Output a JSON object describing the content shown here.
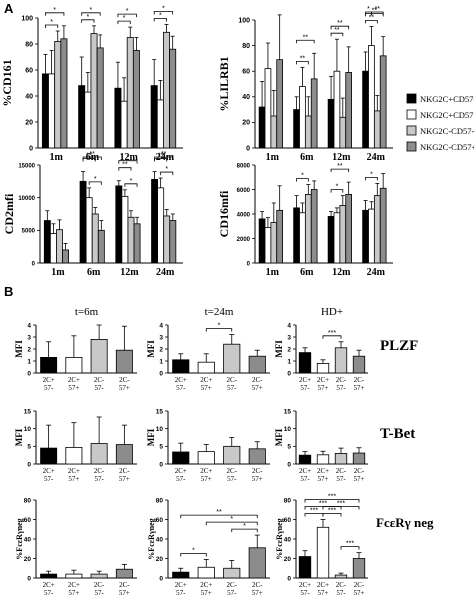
{
  "panel_labels": [
    "A",
    "B"
  ],
  "chart_data": [
    {
      "id": "cd161",
      "type": "bar",
      "ylabel": "%CD161",
      "categories": [
        "1m",
        "6m",
        "12m",
        "24m"
      ],
      "ylim": [
        0,
        100
      ],
      "yticks": [
        0,
        20,
        40,
        60,
        80,
        100
      ],
      "series": [
        {
          "name": "NKG2C+CD57-",
          "values": [
            57,
            48,
            46,
            48
          ],
          "err": [
            15,
            22,
            20,
            20
          ]
        },
        {
          "name": "NKG2C+CD57+",
          "values": [
            57,
            43,
            36,
            37
          ],
          "err": [
            18,
            15,
            18,
            15
          ]
        },
        {
          "name": "NKG2C-CD57-",
          "values": [
            82,
            88,
            85,
            89
          ],
          "err": [
            8,
            6,
            8,
            6
          ]
        },
        {
          "name": "NKG2C-CD57+",
          "values": [
            84,
            77,
            75,
            76
          ],
          "err": [
            10,
            10,
            10,
            10
          ]
        }
      ],
      "signif": [
        "*",
        "*",
        "*",
        "*",
        "*",
        "*",
        "*",
        "*"
      ]
    },
    {
      "id": "lilrb1",
      "type": "bar",
      "ylabel": "%LILRB1",
      "categories": [
        "1m",
        "6m",
        "12m",
        "24m"
      ],
      "ylim": [
        0,
        100
      ],
      "yticks": [
        0,
        20,
        40,
        60,
        80,
        100
      ],
      "series": [
        {
          "name": "NKG2C+CD57-",
          "values": [
            32,
            30,
            38,
            60
          ],
          "err": [
            20,
            10,
            18,
            15
          ]
        },
        {
          "name": "NKG2C+CD57+",
          "values": [
            62,
            48,
            60,
            80
          ],
          "err": [
            20,
            15,
            25,
            15
          ]
        },
        {
          "name": "NKG2C-CD57-",
          "values": [
            25,
            25,
            24,
            29
          ],
          "err": [
            20,
            15,
            15,
            12
          ]
        },
        {
          "name": "NKG2C-CD57+",
          "values": [
            69,
            54,
            59,
            72
          ],
          "err": [
            35,
            20,
            20,
            15
          ]
        }
      ],
      "signif": [
        "**",
        "**",
        "**",
        "**",
        "**",
        "**",
        "**",
        "*"
      ]
    },
    {
      "id": "cd2mfi",
      "type": "bar",
      "ylabel": "CD2mfi",
      "categories": [
        "1m",
        "6m",
        "12m",
        "24m"
      ],
      "ylim": [
        0,
        15000
      ],
      "yticks": [
        0,
        5000,
        10000,
        15000
      ],
      "series": [
        {
          "name": "NKG2C+CD57-",
          "values": [
            6500,
            12500,
            11800,
            12800
          ],
          "err": [
            1500,
            1500,
            800,
            1200
          ]
        },
        {
          "name": "NKG2C+CD57+",
          "values": [
            4500,
            10000,
            10200,
            11500
          ],
          "err": [
            1500,
            1500,
            1000,
            1500
          ]
        },
        {
          "name": "NKG2C-CD57-",
          "values": [
            5100,
            7500,
            7000,
            7200
          ],
          "err": [
            1500,
            1000,
            1000,
            1000
          ]
        },
        {
          "name": "NKG2C-CD57+",
          "values": [
            2000,
            5000,
            6000,
            6500
          ],
          "err": [
            1000,
            1500,
            1000,
            1000
          ]
        }
      ],
      "signif": [
        "**",
        "**",
        "*",
        "**",
        "*",
        "*",
        "**",
        "**",
        "*"
      ]
    },
    {
      "id": "cd16mfi",
      "type": "bar",
      "ylabel": "CD16mfi",
      "categories": [
        "1m",
        "6m",
        "12m",
        "24m"
      ],
      "ylim": [
        0,
        8000
      ],
      "yticks": [
        0,
        2000,
        4000,
        6000,
        8000
      ],
      "series": [
        {
          "name": "NKG2C+CD57-",
          "values": [
            3600,
            4500,
            3800,
            4300
          ],
          "err": [
            600,
            1000,
            400,
            800
          ]
        },
        {
          "name": "NKG2C+CD57+",
          "values": [
            2900,
            4100,
            4100,
            4400
          ],
          "err": [
            800,
            800,
            400,
            600
          ]
        },
        {
          "name": "NKG2C-CD57-",
          "values": [
            3300,
            5600,
            4700,
            5500
          ],
          "err": [
            1600,
            800,
            800,
            1000
          ]
        },
        {
          "name": "NKG2C-CD57+",
          "values": [
            4300,
            6000,
            5600,
            6100
          ],
          "err": [
            2000,
            700,
            1000,
            1200
          ]
        }
      ],
      "signif": [
        "*",
        "**",
        "*",
        "*"
      ]
    },
    {
      "id": "plzf_6m",
      "type": "bar",
      "title": "t=6m",
      "ylabel": "MFI",
      "categories": [
        "2C+ 57-",
        "2C+ 57+",
        "2C- 57-",
        "2C- 57+"
      ],
      "ylim": [
        0,
        4
      ],
      "yticks": [
        0,
        1,
        2,
        3,
        4
      ],
      "values": [
        1.3,
        1.3,
        2.8,
        1.9
      ],
      "err": [
        1.3,
        1.8,
        1.5,
        2.0
      ],
      "signif": []
    },
    {
      "id": "plzf_24m",
      "type": "bar",
      "title": "t=24m",
      "ylabel": "MFI",
      "categories": [
        "2C+ 57-",
        "2C+ 57+",
        "2C- 57-",
        "2C- 57+"
      ],
      "ylim": [
        0,
        4
      ],
      "yticks": [
        0,
        1,
        2,
        3,
        4
      ],
      "values": [
        1.1,
        0.9,
        2.4,
        1.4
      ],
      "err": [
        0.5,
        0.7,
        0.8,
        0.5
      ],
      "signif": [
        "*"
      ]
    },
    {
      "id": "plzf_hd",
      "type": "bar",
      "title": "HD+",
      "ylabel": "MFI",
      "categories": [
        "2C+ 57-",
        "2C+ 57+",
        "2C- 57-",
        "2C- 57+"
      ],
      "ylim": [
        0,
        4
      ],
      "yticks": [
        0,
        1,
        2,
        3,
        4
      ],
      "values": [
        1.7,
        0.8,
        2.1,
        1.4
      ],
      "err": [
        0.4,
        0.3,
        0.5,
        0.5
      ],
      "signif": [
        "***"
      ]
    },
    {
      "id": "tbet_6m",
      "type": "bar",
      "ylabel": "MFI",
      "categories": [
        "2C+ 57-",
        "2C+ 57+",
        "2C- 57-",
        "2C- 57+"
      ],
      "ylim": [
        0,
        15
      ],
      "yticks": [
        0,
        5,
        10,
        15
      ],
      "values": [
        4.5,
        4.7,
        5.8,
        5.5
      ],
      "err": [
        6.5,
        7.0,
        7.5,
        5.5
      ],
      "signif": []
    },
    {
      "id": "tbet_24m",
      "type": "bar",
      "ylabel": "MFI",
      "categories": [
        "2C+ 57-",
        "2C+ 57+",
        "2C- 57-",
        "2C- 57+"
      ],
      "ylim": [
        0,
        15
      ],
      "yticks": [
        0,
        5,
        10,
        15
      ],
      "values": [
        3.4,
        3.5,
        5.0,
        4.3
      ],
      "err": [
        2.5,
        2.0,
        2.5,
        2.0
      ],
      "signif": []
    },
    {
      "id": "tbet_hd",
      "type": "bar",
      "ylabel": "MFI",
      "categories": [
        "2C+ 57-",
        "2C+ 57+",
        "2C- 57-",
        "2C- 57+"
      ],
      "ylim": [
        0,
        15
      ],
      "yticks": [
        0,
        5,
        10,
        15
      ],
      "values": [
        2.5,
        2.6,
        3.0,
        3.1
      ],
      "err": [
        1.0,
        1.0,
        1.5,
        1.5
      ],
      "signif": []
    },
    {
      "id": "fce_6m",
      "type": "bar",
      "ylabel": "%FcεRγneg",
      "categories": [
        "2C+ 57-",
        "2C+ 57+",
        "2C- 57-",
        "2C- 57+"
      ],
      "ylim": [
        0,
        80
      ],
      "yticks": [
        0,
        20,
        40,
        60,
        80
      ],
      "values": [
        4,
        4,
        4,
        9
      ],
      "err": [
        3,
        4,
        3,
        5
      ],
      "signif": []
    },
    {
      "id": "fce_24m",
      "type": "bar",
      "ylabel": "%FcεRγneg",
      "categories": [
        "2C+ 57-",
        "2C+ 57+",
        "2C- 57-",
        "2C- 57+"
      ],
      "ylim": [
        0,
        80
      ],
      "yticks": [
        0,
        20,
        40,
        60,
        80
      ],
      "values": [
        6,
        11,
        10,
        31
      ],
      "err": [
        4,
        8,
        8,
        13
      ],
      "signif": [
        "*",
        "*",
        "**",
        "*"
      ]
    },
    {
      "id": "fce_hd",
      "type": "bar",
      "ylabel": "%FcεRγneg",
      "categories": [
        "2C+ 57-",
        "2C+ 57+",
        "2C- 57-",
        "2C- 57+"
      ],
      "ylim": [
        0,
        80
      ],
      "yticks": [
        0,
        20,
        40,
        60,
        80
      ],
      "values": [
        22,
        52,
        3,
        20
      ],
      "err": [
        6,
        8,
        2,
        6
      ],
      "signif": [
        "***",
        "***",
        "***",
        "***",
        "***",
        "***"
      ]
    }
  ],
  "legend": {
    "items": [
      {
        "label": "NKG2C+CD57-",
        "color": "#000000"
      },
      {
        "label": "NKG2C+CD57+",
        "color": "#ffffff"
      },
      {
        "label": "NKG2C-CD57-",
        "color": "#c8c8c8"
      },
      {
        "label": "NKG2C-CD57+",
        "color": "#8c8c8c"
      }
    ]
  },
  "row_labels": [
    "PLZF",
    "T-Bet",
    "FcεRγ neg"
  ],
  "colors": [
    "#000000",
    "#ffffff",
    "#c8c8c8",
    "#8c8c8c"
  ]
}
